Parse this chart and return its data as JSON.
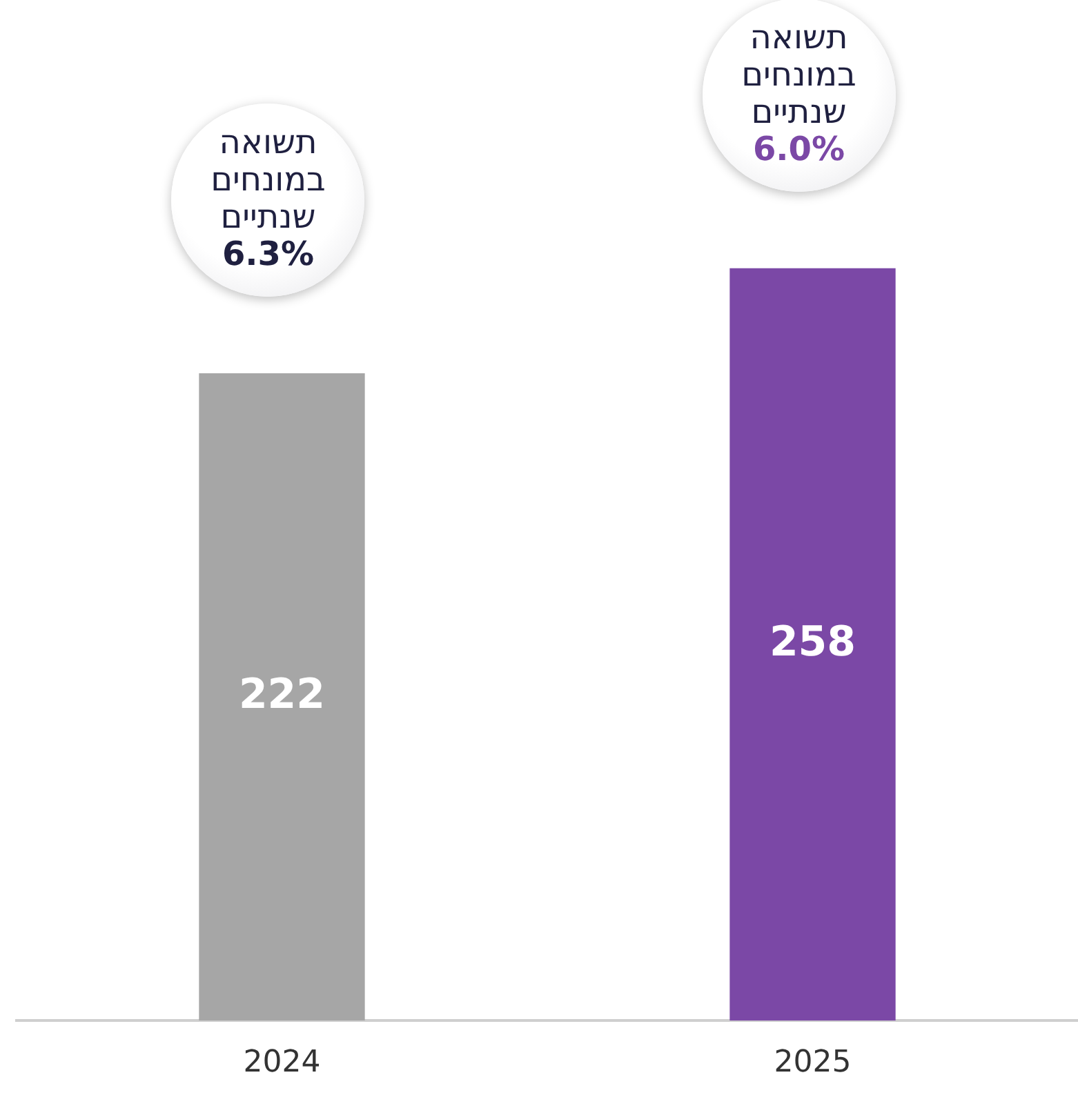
{
  "chart_data": {
    "type": "bar",
    "categories": [
      "2024",
      "2025"
    ],
    "values": [
      222,
      258
    ],
    "colors": [
      "#a6a6a6",
      "#7b48a6"
    ],
    "tick_labels": "x",
    "grid": false,
    "legend": false,
    "data_labels": true,
    "annotations": [
      "תשואה במונחים שנתיים",
      "6.3%",
      "תשואה במונחים שנתיים",
      "6.0%"
    ]
  }
}
